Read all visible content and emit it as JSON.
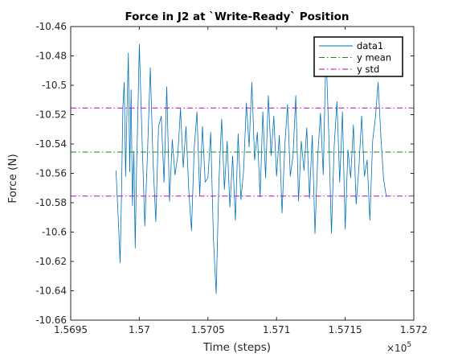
{
  "chart_data": {
    "type": "line",
    "title": "Force in J2 at `Write-Ready` Position",
    "xlabel": "Time (steps)",
    "ylabel": "Force (N)",
    "x_multiplier_label": {
      "base": "×10",
      "exp": "5"
    },
    "xlim": [
      1.5695,
      1.572
    ],
    "ylim": [
      -10.66,
      -10.46
    ],
    "x_ticks": [
      1.5695,
      1.57,
      1.5705,
      1.571,
      1.5715,
      1.572
    ],
    "x_tick_labels": [
      "1.5695",
      "1.57",
      "1.5705",
      "1.571",
      "1.5715",
      "1.572"
    ],
    "y_ticks": [
      -10.46,
      -10.48,
      -10.5,
      -10.52,
      -10.54,
      -10.56,
      -10.58,
      -10.6,
      -10.62,
      -10.64,
      -10.66
    ],
    "y_tick_labels": [
      "-10.46",
      "-10.48",
      "-10.5",
      "-10.52",
      "-10.54",
      "-10.56",
      "-10.58",
      "-10.6",
      "-10.62",
      "-10.64",
      "-10.66"
    ],
    "legend_position": "top-right",
    "grid": false,
    "series": [
      {
        "name": "data1",
        "color": "#0072BD",
        "line_style": "solid",
        "x_start": 1.56983,
        "x_end": 1.5718,
        "points": [
          [
            1.56983,
            -10.558
          ],
          [
            1.56985,
            -10.598
          ],
          [
            1.56986,
            -10.621
          ],
          [
            1.56987,
            -10.575
          ],
          [
            1.56988,
            -10.515
          ],
          [
            1.56989,
            -10.498
          ],
          [
            1.5699,
            -10.562
          ],
          [
            1.56991,
            -10.519
          ],
          [
            1.56992,
            -10.478
          ],
          [
            1.56993,
            -10.559
          ],
          [
            1.56994,
            -10.503
          ],
          [
            1.56995,
            -10.582
          ],
          [
            1.56996,
            -10.545
          ],
          [
            1.56997,
            -10.611
          ],
          [
            1.56998,
            -10.556
          ],
          [
            1.56999,
            -10.517
          ],
          [
            1.57,
            -10.472
          ],
          [
            1.57002,
            -10.537
          ],
          [
            1.57004,
            -10.596
          ],
          [
            1.57006,
            -10.545
          ],
          [
            1.57008,
            -10.488
          ],
          [
            1.5701,
            -10.552
          ],
          [
            1.57012,
            -10.593
          ],
          [
            1.57014,
            -10.528
          ],
          [
            1.57016,
            -10.521
          ],
          [
            1.57018,
            -10.566
          ],
          [
            1.5702,
            -10.501
          ],
          [
            1.57022,
            -10.579
          ],
          [
            1.57024,
            -10.537
          ],
          [
            1.57026,
            -10.561
          ],
          [
            1.57028,
            -10.548
          ],
          [
            1.5703,
            -10.516
          ],
          [
            1.57032,
            -10.556
          ],
          [
            1.57034,
            -10.528
          ],
          [
            1.57036,
            -10.571
          ],
          [
            1.57038,
            -10.599
          ],
          [
            1.5704,
            -10.543
          ],
          [
            1.57042,
            -10.518
          ],
          [
            1.57044,
            -10.575
          ],
          [
            1.57046,
            -10.528
          ],
          [
            1.57048,
            -10.566
          ],
          [
            1.5705,
            -10.563
          ],
          [
            1.57052,
            -10.532
          ],
          [
            1.57054,
            -10.605
          ],
          [
            1.57056,
            -10.642
          ],
          [
            1.57058,
            -10.565
          ],
          [
            1.5706,
            -10.523
          ],
          [
            1.57062,
            -10.571
          ],
          [
            1.57064,
            -10.538
          ],
          [
            1.57066,
            -10.583
          ],
          [
            1.57068,
            -10.548
          ],
          [
            1.5707,
            -10.592
          ],
          [
            1.57072,
            -10.533
          ],
          [
            1.57074,
            -10.578
          ],
          [
            1.57076,
            -10.558
          ],
          [
            1.57078,
            -10.512
          ],
          [
            1.5708,
            -10.542
          ],
          [
            1.57082,
            -10.498
          ],
          [
            1.57084,
            -10.551
          ],
          [
            1.57086,
            -10.532
          ],
          [
            1.57088,
            -10.576
          ],
          [
            1.5709,
            -10.518
          ],
          [
            1.57092,
            -10.563
          ],
          [
            1.57094,
            -10.507
          ],
          [
            1.57096,
            -10.548
          ],
          [
            1.57098,
            -10.521
          ],
          [
            1.571,
            -10.562
          ],
          [
            1.57102,
            -10.534
          ],
          [
            1.57104,
            -10.587
          ],
          [
            1.57106,
            -10.541
          ],
          [
            1.57108,
            -10.513
          ],
          [
            1.5711,
            -10.562
          ],
          [
            1.57112,
            -10.548
          ],
          [
            1.57114,
            -10.507
          ],
          [
            1.57116,
            -10.579
          ],
          [
            1.57118,
            -10.538
          ],
          [
            1.5712,
            -10.558
          ],
          [
            1.57122,
            -10.529
          ],
          [
            1.57124,
            -10.577
          ],
          [
            1.57126,
            -10.534
          ],
          [
            1.57128,
            -10.601
          ],
          [
            1.5713,
            -10.548
          ],
          [
            1.57132,
            -10.519
          ],
          [
            1.57134,
            -10.561
          ],
          [
            1.57136,
            -10.476
          ],
          [
            1.57138,
            -10.532
          ],
          [
            1.5714,
            -10.601
          ],
          [
            1.57142,
            -10.541
          ],
          [
            1.57144,
            -10.511
          ],
          [
            1.57146,
            -10.566
          ],
          [
            1.57148,
            -10.518
          ],
          [
            1.5715,
            -10.598
          ],
          [
            1.57152,
            -10.544
          ],
          [
            1.57154,
            -10.563
          ],
          [
            1.57156,
            -10.527
          ],
          [
            1.57158,
            -10.581
          ],
          [
            1.5716,
            -10.556
          ],
          [
            1.57162,
            -10.521
          ],
          [
            1.57164,
            -10.562
          ],
          [
            1.57166,
            -10.551
          ],
          [
            1.57168,
            -10.592
          ],
          [
            1.5717,
            -10.538
          ],
          [
            1.57172,
            -10.522
          ],
          [
            1.57174,
            -10.498
          ],
          [
            1.57176,
            -10.535
          ],
          [
            1.57178,
            -10.564
          ],
          [
            1.5718,
            -10.576
          ]
        ]
      },
      {
        "name": "y mean",
        "color": "#118A11",
        "line_style": "dashdot",
        "y": -10.5455
      },
      {
        "name": "y std",
        "color": "#BF00BF",
        "line_style": "dashdot",
        "y": [
          -10.5155,
          -10.5755
        ]
      }
    ]
  }
}
